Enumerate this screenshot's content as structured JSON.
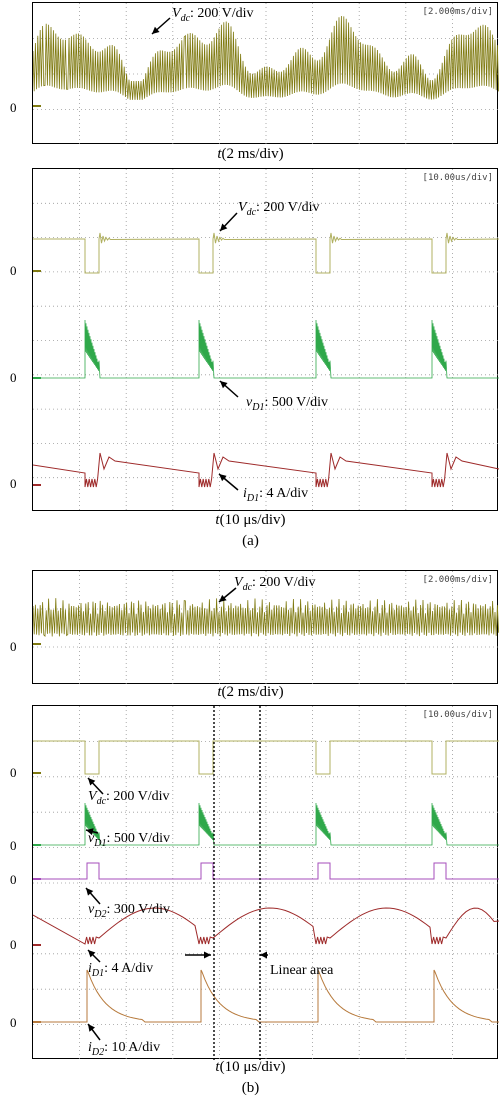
{
  "colors": {
    "vdc": "#7f7a10",
    "vdc_light": "#b0b060",
    "vd1": "#2fa84a",
    "vd2": "#a64dbb",
    "id1": "#9e2a2a",
    "id2": "#b77a3c",
    "grid": "#9a9a9a"
  },
  "zero_label": "0",
  "subfig_a": "(a)",
  "subfig_b": "(b)",
  "panel1": {
    "timebase": "[2.000ms/div]",
    "xlabel_var": "t",
    "xlabel_rest": "(2 ms/div)",
    "ann_vdc_var": "V",
    "ann_vdc_sub": "dc",
    "ann_vdc_val": ": 200 V/div"
  },
  "panel2": {
    "timebase": "[10.00us/div]",
    "xlabel_var": "t",
    "xlabel_rest": "(10 μs/div)",
    "ann_vdc_var": "V",
    "ann_vdc_sub": "dc",
    "ann_vdc_val": ": 200 V/div",
    "ann_vd1_var": "v",
    "ann_vd1_sub": "D1",
    "ann_vd1_val": ": 500 V/div",
    "ann_id1_var": "i",
    "ann_id1_sub": "D1",
    "ann_id1_val": ": 4 A/div"
  },
  "panel3": {
    "timebase": "[2.000ms/div]",
    "xlabel_var": "t",
    "xlabel_rest": "(2 ms/div)",
    "ann_vdc_var": "V",
    "ann_vdc_sub": "dc",
    "ann_vdc_val": ": 200 V/div"
  },
  "panel4": {
    "timebase": "[10.00us/div]",
    "xlabel_var": "t",
    "xlabel_rest": "(10 μs/div)",
    "ann_vdc_var": "V",
    "ann_vdc_sub": "dc",
    "ann_vdc_val": ": 200 V/div",
    "ann_vd1_var": "v",
    "ann_vd1_sub": "D1",
    "ann_vd1_val": ": 500 V/div",
    "ann_vd2_var": "v",
    "ann_vd2_sub": "D2",
    "ann_vd2_val": ": 300 V/div",
    "ann_id1_var": "i",
    "ann_id1_sub": "D1",
    "ann_id1_val": ": 4 A/div",
    "ann_id2_var": "i",
    "ann_id2_sub": "D2",
    "ann_id2_val": ": 10 A/div",
    "linear_area": "Linear area"
  },
  "chart_data": [
    {
      "type": "line",
      "timebase": "2 ms/div",
      "series": [
        {
          "name": "Vdc",
          "scale": "200 V/div"
        }
      ]
    },
    {
      "type": "line",
      "timebase": "10 μs/div",
      "pulse_period_div": 2.3,
      "pulse_count": 4,
      "series": [
        {
          "name": "Vdc",
          "scale": "200 V/div"
        },
        {
          "name": "vD1",
          "scale": "500 V/div"
        },
        {
          "name": "iD1",
          "scale": "4 A/div"
        }
      ]
    },
    {
      "type": "line",
      "timebase": "2 ms/div",
      "series": [
        {
          "name": "Vdc",
          "scale": "200 V/div"
        }
      ]
    },
    {
      "type": "line",
      "timebase": "10 μs/div",
      "pulse_period_div": 2.3,
      "pulse_count": 4,
      "series": [
        {
          "name": "Vdc",
          "scale": "200 V/div"
        },
        {
          "name": "vD1",
          "scale": "500 V/div"
        },
        {
          "name": "vD2",
          "scale": "300 V/div"
        },
        {
          "name": "iD1",
          "scale": "4 A/div"
        },
        {
          "name": "iD2",
          "scale": "10 A/div"
        }
      ]
    }
  ]
}
